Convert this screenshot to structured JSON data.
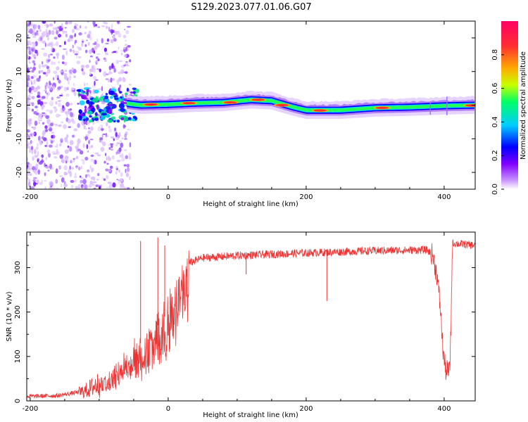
{
  "figure": {
    "title": "S129.2023.077.01.06.G07"
  },
  "chart_data": [
    {
      "type": "heatmap",
      "xlabel": "Height of straight line (km)",
      "ylabel": "Frequency (Hz)",
      "xlim": [
        -205,
        445
      ],
      "ylim": [
        -25,
        25
      ],
      "xticks": [
        -200,
        0,
        200,
        400
      ],
      "yticks": [
        -20,
        -10,
        0,
        10,
        20
      ],
      "colorbar": {
        "label": "Normalized spectral amplitude",
        "range": [
          0,
          1
        ],
        "ticks": [
          0.0,
          0.2,
          0.4,
          0.6,
          0.8
        ],
        "palette": [
          "#ffffff",
          "#cc99ff",
          "#8000ff",
          "#0000ff",
          "#00ccff",
          "#00ff66",
          "#c8ff00",
          "#ffaa00",
          "#ff3030",
          "#ff0066"
        ]
      },
      "ridge": [
        {
          "x": -60,
          "f": 0.5
        },
        {
          "x": -40,
          "f": 0.0
        },
        {
          "x": 0,
          "f": 0.2
        },
        {
          "x": 40,
          "f": 0.6
        },
        {
          "x": 80,
          "f": 0.8
        },
        {
          "x": 120,
          "f": 1.6
        },
        {
          "x": 150,
          "f": 1.3
        },
        {
          "x": 180,
          "f": -0.5
        },
        {
          "x": 200,
          "f": -1.5
        },
        {
          "x": 250,
          "f": -1.5
        },
        {
          "x": 300,
          "f": -0.8
        },
        {
          "x": 350,
          "f": -0.6
        },
        {
          "x": 400,
          "f": -0.2
        },
        {
          "x": 445,
          "f": 0.0
        }
      ],
      "hot_spots": [
        {
          "x": -25,
          "f": 0.2
        },
        {
          "x": 30,
          "f": 0.6
        },
        {
          "x": 90,
          "f": 0.8
        },
        {
          "x": 130,
          "f": 1.6
        },
        {
          "x": 165,
          "f": 0.0
        },
        {
          "x": 220,
          "f": -1.6
        },
        {
          "x": 310,
          "f": -0.8
        },
        {
          "x": 440,
          "f": -0.1
        }
      ]
    },
    {
      "type": "line",
      "xlabel": "Height of straight line (km)",
      "ylabel": "SNR (10 * v/v)",
      "xlim": [
        -205,
        445
      ],
      "ylim": [
        0,
        380
      ],
      "xticks": [
        -200,
        0,
        200,
        400
      ],
      "yticks": [
        0,
        100,
        200,
        300
      ],
      "color": "#ee3333",
      "envelope": [
        {
          "x": -205,
          "y": 10
        },
        {
          "x": -160,
          "y": 12
        },
        {
          "x": -120,
          "y": 22
        },
        {
          "x": -100,
          "y": 40
        },
        {
          "x": -80,
          "y": 70
        },
        {
          "x": -60,
          "y": 100
        },
        {
          "x": -40,
          "y": 130
        },
        {
          "x": -20,
          "y": 160
        },
        {
          "x": 0,
          "y": 200
        },
        {
          "x": 10,
          "y": 240
        },
        {
          "x": 20,
          "y": 280
        },
        {
          "x": 30,
          "y": 310
        },
        {
          "x": 50,
          "y": 322
        },
        {
          "x": 100,
          "y": 327
        },
        {
          "x": 200,
          "y": 333
        },
        {
          "x": 300,
          "y": 338
        },
        {
          "x": 375,
          "y": 340
        },
        {
          "x": 383,
          "y": 330
        },
        {
          "x": 390,
          "y": 280
        },
        {
          "x": 395,
          "y": 200
        },
        {
          "x": 398,
          "y": 120
        },
        {
          "x": 402,
          "y": 70
        },
        {
          "x": 408,
          "y": 65
        },
        {
          "x": 410,
          "y": 180
        },
        {
          "x": 412,
          "y": 355
        },
        {
          "x": 445,
          "y": 350
        }
      ],
      "spikes": [
        {
          "x": -40,
          "y": 360
        },
        {
          "x": -15,
          "y": 368
        },
        {
          "x": -5,
          "y": 350
        },
        {
          "x": 113,
          "y": 285
        },
        {
          "x": 230,
          "y": 225
        }
      ]
    }
  ]
}
